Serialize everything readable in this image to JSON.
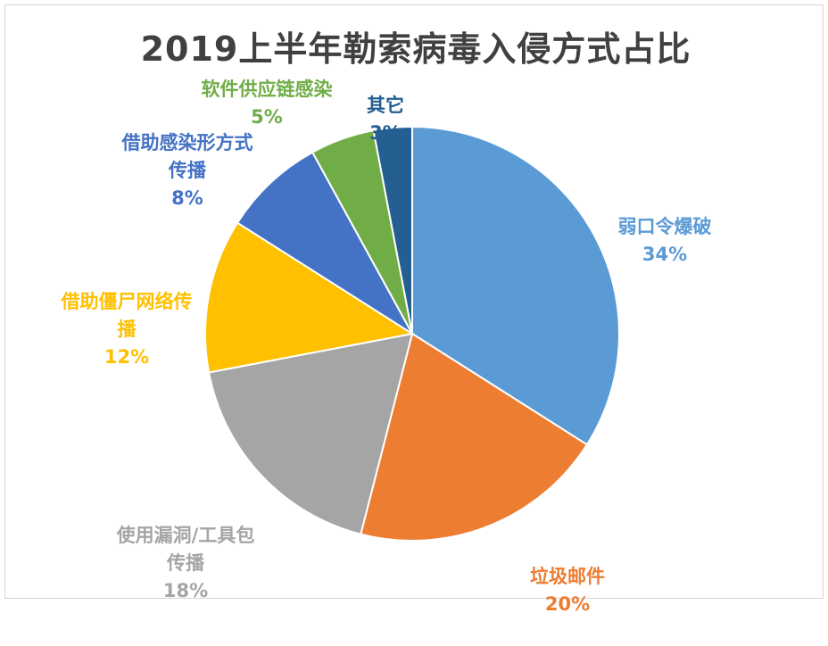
{
  "chart_data": {
    "type": "pie",
    "title": "2019上半年勒索病毒入侵方式占比",
    "start_angle_deg": 0,
    "direction": "clockwise",
    "slices": [
      {
        "label": "弱口令爆破",
        "value": 34,
        "display": "34%",
        "color": "#5B9BD5"
      },
      {
        "label": "垃圾邮件",
        "value": 20,
        "display": "20%",
        "color": "#ED7D31"
      },
      {
        "label": "使用漏洞/工具包传播",
        "value": 18,
        "display": "18%",
        "color": "#A5A5A5"
      },
      {
        "label": "借助僵尸网络传播",
        "value": 12,
        "display": "12%",
        "color": "#FFC000"
      },
      {
        "label": "借助感染形方式传播",
        "value": 8,
        "display": "8%",
        "color": "#4472C4"
      },
      {
        "label": "软件供应链感染",
        "value": 5,
        "display": "5%",
        "color": "#70AD47"
      },
      {
        "label": "其它",
        "value": 3,
        "display": "3%",
        "color": "#255E91"
      }
    ]
  }
}
